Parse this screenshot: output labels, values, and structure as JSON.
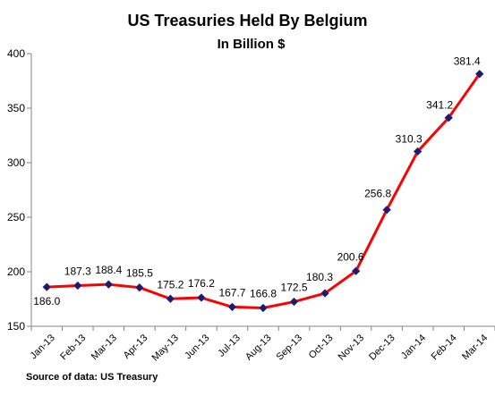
{
  "chart_data": {
    "type": "line",
    "title": "US Treasuries Held By  Belgium",
    "subtitle": "In Billion $",
    "xlabel": "",
    "ylabel": "",
    "categories": [
      "Jan-13",
      "Feb-13",
      "Mar-13",
      "Apr-13",
      "May-13",
      "Jun-13",
      "Jul-13",
      "Aug-13",
      "Sep-13",
      "Oct-13",
      "Nov-13",
      "Dec-13",
      "Jan-14",
      "Feb-14",
      "Mar-14"
    ],
    "series": [
      {
        "values": [
          186.0,
          187.3,
          188.4,
          185.5,
          175.2,
          176.2,
          167.7,
          166.8,
          172.5,
          180.3,
          200.6,
          256.8,
          310.3,
          341.2,
          381.4
        ],
        "labels": [
          "186.0",
          "187.3",
          "188.4",
          "185.5",
          "175.2",
          "176.2",
          "167.7",
          "166.8",
          "172.5",
          "180.3",
          "200.6",
          "256.8",
          "310.3",
          "341.2",
          "381.4"
        ],
        "line_color": "#ff0000",
        "marker_color": "#1f1a6b"
      }
    ],
    "ylim": [
      150,
      400
    ],
    "yticks": [
      "150",
      "200",
      "250",
      "300",
      "350",
      "400"
    ],
    "grid": false,
    "legend": "none"
  },
  "footer": {
    "source": "Source of data: US Treasury"
  }
}
